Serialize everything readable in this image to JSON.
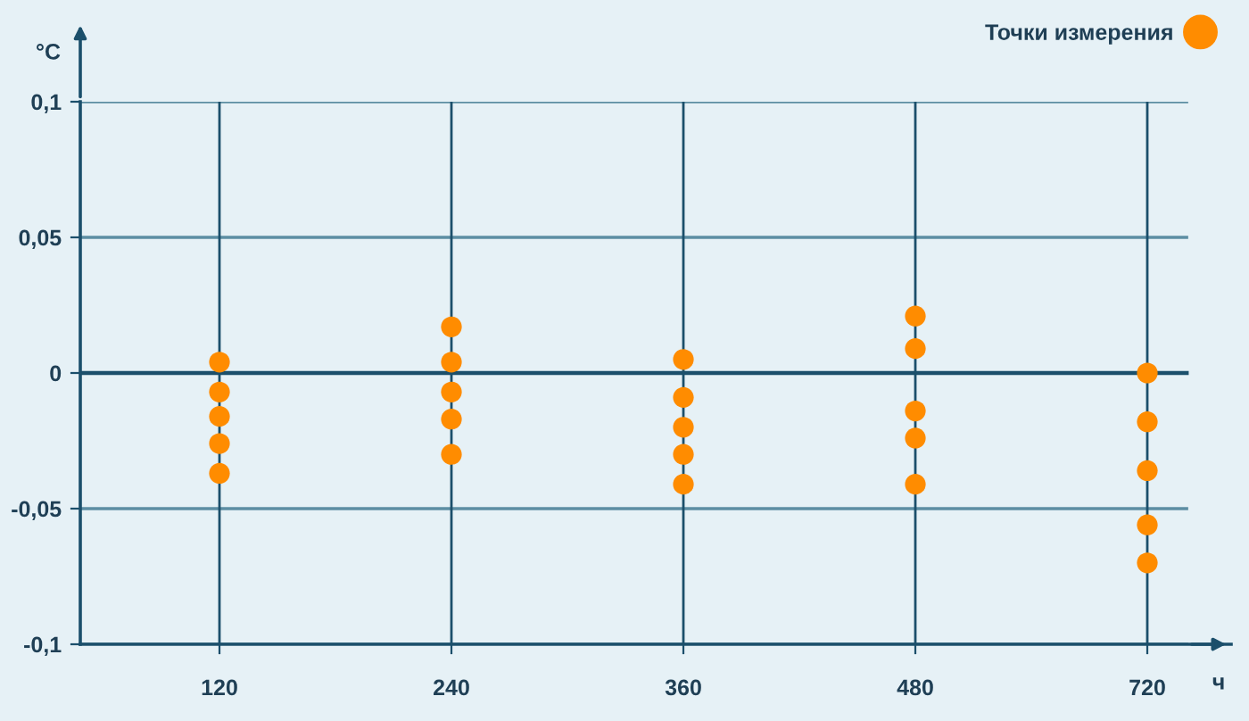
{
  "chart_data": {
    "type": "scatter",
    "ylabel": "°C",
    "xlabel": "ч",
    "categories": [
      "120",
      "240",
      "360",
      "480",
      "720"
    ],
    "series": [
      {
        "name": "Точки измерения",
        "color": "#ff8c00",
        "x": [
          "120",
          "120",
          "120",
          "120",
          "120",
          "240",
          "240",
          "240",
          "240",
          "240",
          "360",
          "360",
          "360",
          "360",
          "360",
          "480",
          "480",
          "480",
          "480",
          "480",
          "720",
          "720",
          "720",
          "720",
          "720"
        ],
        "values": [
          0.004,
          -0.007,
          -0.016,
          -0.026,
          -0.037,
          0.017,
          0.004,
          -0.007,
          -0.017,
          -0.03,
          0.005,
          -0.009,
          -0.02,
          -0.03,
          -0.041,
          0.021,
          0.009,
          -0.014,
          -0.024,
          -0.041,
          0.0,
          -0.018,
          -0.036,
          -0.056,
          -0.07
        ]
      }
    ],
    "ylim": [
      -0.1,
      0.1
    ],
    "yticks": [
      {
        "value": -0.1,
        "label": "-0,1"
      },
      {
        "value": -0.05,
        "label": "-0,05"
      },
      {
        "value": 0,
        "label": "0"
      },
      {
        "value": 0.05,
        "label": "0,05"
      },
      {
        "value": 0.1,
        "label": "0,1"
      }
    ],
    "ref_lines": [
      {
        "axis": "y",
        "value": 0,
        "label": null,
        "color": "#1b4f6b"
      }
    ],
    "grid": true,
    "legend": "top right",
    "marker": "circle"
  }
}
